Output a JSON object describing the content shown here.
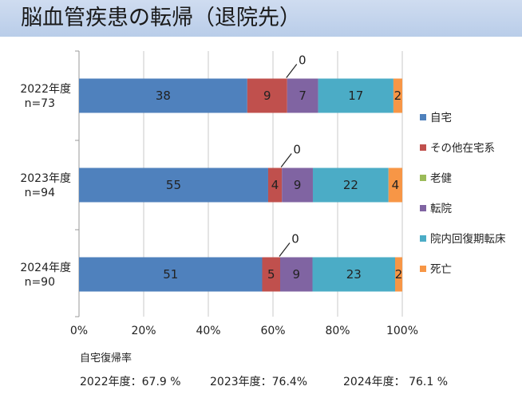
{
  "title": "脳血管疾患の転帰（退院先）",
  "chart_data": {
    "type": "bar",
    "orientation": "horizontal",
    "stacked": "percent",
    "categories": [
      [
        "2022年度",
        "n=73"
      ],
      [
        "2023年度",
        "n=94"
      ],
      [
        "2024年度",
        "n=90"
      ]
    ],
    "series": [
      {
        "name": "自宅",
        "color": "#4f81bd",
        "values": [
          38,
          55,
          51
        ]
      },
      {
        "name": "その他在宅系",
        "color": "#c0504d",
        "values": [
          9,
          4,
          5
        ]
      },
      {
        "name": "老健",
        "color": "#9bbb59",
        "values": [
          0,
          0,
          0
        ]
      },
      {
        "name": "転院",
        "color": "#8064a2",
        "values": [
          7,
          9,
          9
        ]
      },
      {
        "name": "院内回復期転床",
        "color": "#4bacc6",
        "values": [
          17,
          22,
          23
        ]
      },
      {
        "name": "死亡",
        "color": "#f79646",
        "values": [
          2,
          4,
          2
        ]
      }
    ],
    "xaxis": {
      "min": 0,
      "max": 100,
      "ticks": [
        0,
        20,
        40,
        60,
        80,
        100
      ],
      "tick_labels": [
        "0%",
        "20%",
        "40%",
        "60%",
        "80%",
        "100%"
      ]
    },
    "gridlines": true,
    "legend_position": "right",
    "zero_callout_label": "0"
  },
  "footer": {
    "label": "自宅復帰率",
    "rates": [
      "2022年度：67.9 %",
      "2023年度：76.4%",
      "2024年度： 76.1 %"
    ]
  }
}
